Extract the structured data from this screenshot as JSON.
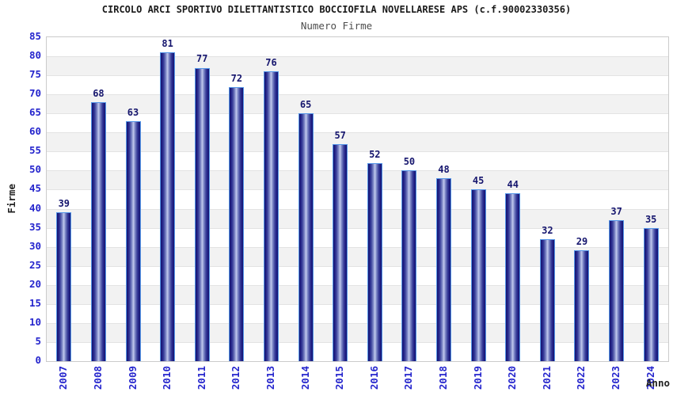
{
  "chart_data": {
    "type": "bar",
    "title": "CIRCOLO ARCI SPORTIVO DILETTANTISTICO BOCCIOFILA NOVELLARESE APS (c.f.90002330356)",
    "subtitle": "Numero Firme",
    "categories": [
      "2007",
      "2008",
      "2009",
      "2010",
      "2011",
      "2012",
      "2013",
      "2014",
      "2015",
      "2016",
      "2017",
      "2018",
      "2019",
      "2020",
      "2021",
      "2022",
      "2023",
      "2024"
    ],
    "values": [
      39,
      68,
      63,
      81,
      77,
      72,
      76,
      65,
      57,
      52,
      50,
      48,
      45,
      44,
      32,
      29,
      37,
      35
    ],
    "xlabel": "Anno",
    "ylabel": "Firme",
    "ylim": [
      0,
      85
    ],
    "ytick_step": 5,
    "grid": true,
    "legend_position": "none",
    "band_pattern": "alternating horizontal stripes, white top band",
    "colors": {
      "bar_edge_dark": "#16166e",
      "bar_mid": "#3a3f9a",
      "bar_center_light": "#c2caee",
      "bar_outline": "#5596e8",
      "axis_tick_text": "#2525cd",
      "value_label_text": "#16166e",
      "title_text": "#1a1a1a",
      "subtitle_text": "#4d4d4d",
      "axis_title_text": "#222222",
      "band_gray": "#f2f2f2",
      "gridline": "#e3e3e3",
      "plot_border": "#cbcbcb",
      "background": "#ffffff"
    }
  }
}
